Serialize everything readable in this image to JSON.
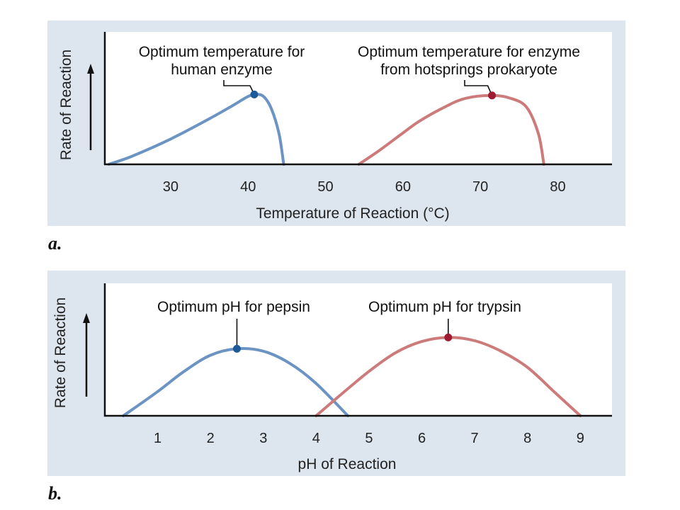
{
  "chart_data": [
    {
      "type": "line",
      "panel_label": "a.",
      "xlabel": "Temperature of Reaction (°C)",
      "ylabel": "Rate of Reaction",
      "xlim": [
        21.5,
        87
      ],
      "xticks": [
        30,
        40,
        50,
        60,
        70,
        80
      ],
      "grid": false,
      "series": [
        {
          "color": "#6b93c3",
          "points": [
            [
              22,
              0
            ],
            [
              25,
              0.08
            ],
            [
              30,
              0.25
            ],
            [
              35,
              0.45
            ],
            [
              38,
              0.58
            ],
            [
              40,
              0.67
            ],
            [
              41,
              0.69
            ],
            [
              42,
              0.67
            ],
            [
              43,
              0.55
            ],
            [
              44,
              0.3
            ],
            [
              44.6,
              0
            ]
          ]
        },
        {
          "color": "#cd7a7a",
          "points": [
            [
              54.3,
              0
            ],
            [
              57,
              0.14
            ],
            [
              60,
              0.31
            ],
            [
              62,
              0.42
            ],
            [
              65,
              0.55
            ],
            [
              68,
              0.65
            ],
            [
              71.5,
              0.68
            ],
            [
              74,
              0.65
            ],
            [
              76,
              0.56
            ],
            [
              77.5,
              0.3
            ],
            [
              78.2,
              0
            ]
          ]
        }
      ],
      "annotations": [
        {
          "lines": [
            "Optimum temperature for",
            "human enzyme"
          ],
          "x": 40.8,
          "y": 0.69,
          "color": "#1e5a9a"
        },
        {
          "lines": [
            "Optimum temperature for enzyme",
            "from hotsprings prokaryote"
          ],
          "x": 71.5,
          "y": 0.68,
          "color": "#9e1b32"
        }
      ]
    },
    {
      "type": "line",
      "panel_label": "b.",
      "xlabel": "pH of Reaction",
      "ylabel": "Rate of Reaction",
      "xlim": [
        0,
        9.6
      ],
      "xticks": [
        1,
        2,
        3,
        4,
        5,
        6,
        7,
        8,
        9
      ],
      "grid": false,
      "series": [
        {
          "color": "#6b93c3",
          "points": [
            [
              0.35,
              0
            ],
            [
              1,
              0.3
            ],
            [
              1.5,
              0.55
            ],
            [
              2,
              0.75
            ],
            [
              2.5,
              0.83
            ],
            [
              3,
              0.8
            ],
            [
              3.5,
              0.65
            ],
            [
              4,
              0.4
            ],
            [
              4.6,
              0
            ]
          ]
        },
        {
          "color": "#cd7a7a",
          "points": [
            [
              4,
              0
            ],
            [
              4.5,
              0.28
            ],
            [
              5,
              0.55
            ],
            [
              5.5,
              0.78
            ],
            [
              6,
              0.92
            ],
            [
              6.5,
              0.97
            ],
            [
              7,
              0.93
            ],
            [
              7.5,
              0.8
            ],
            [
              8,
              0.6
            ],
            [
              8.5,
              0.3
            ],
            [
              9,
              0
            ]
          ]
        }
      ],
      "annotations": [
        {
          "lines": [
            "Optimum pH for pepsin"
          ],
          "x": 2.5,
          "y": 0.83,
          "color": "#1e5a9a"
        },
        {
          "lines": [
            "Optimum pH for trypsin"
          ],
          "x": 6.5,
          "y": 0.97,
          "color": "#9e1b32"
        }
      ]
    }
  ]
}
